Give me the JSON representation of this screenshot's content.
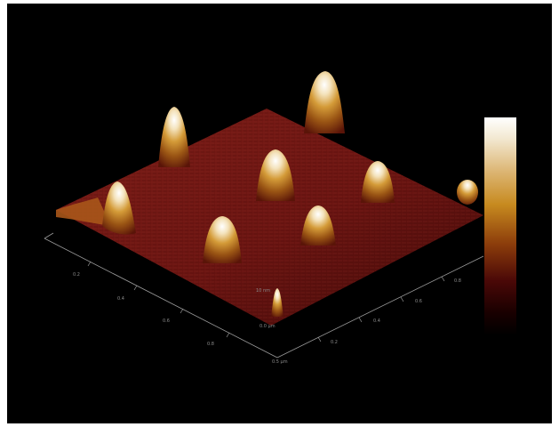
{
  "figure": {
    "kind": "afm-3d-surface",
    "background_color": "#000000",
    "surface_color": "#6b1512",
    "peak_color": "#c98a2a",
    "peak_top_color": "#ffffff"
  },
  "colorbar": {
    "orientation": "vertical",
    "top_color": "#ffffff",
    "bottom_color": "#000000"
  },
  "axes": {
    "x_ticks": [
      "0.2",
      "0.4",
      "0.6",
      "0.8",
      "0.0 µm"
    ],
    "y_ticks": [
      "0.2",
      "0.4",
      "0.6",
      "0.8"
    ],
    "z_ticks": [
      "10 nm",
      "0.5 µm"
    ]
  },
  "features": {
    "peak_count": 9,
    "cluster_count": 1
  }
}
